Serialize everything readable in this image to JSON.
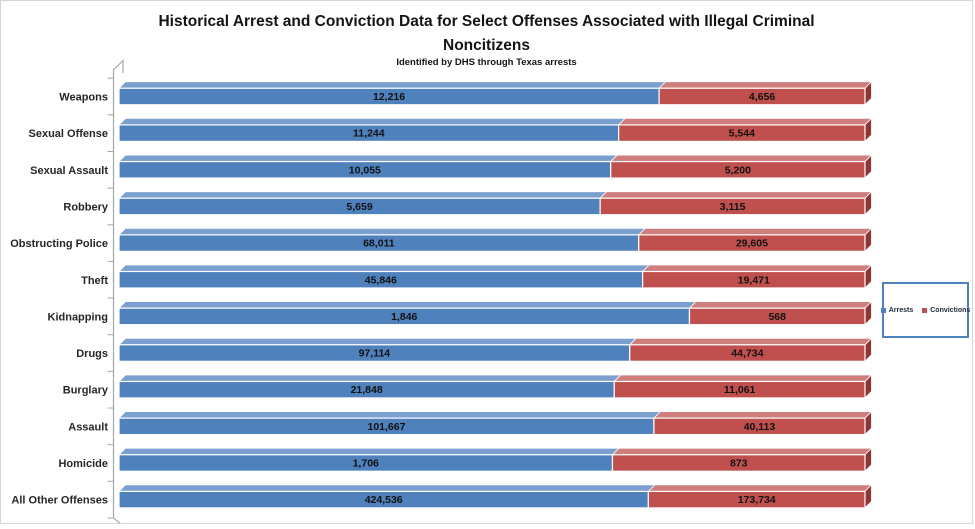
{
  "figure": {
    "title_line1": "Historical Arrest and Conviction Data for Select Offenses Associated with Illegal Criminal",
    "title_line2": "Noncitizens",
    "subtitle": "Identified by DHS through Texas arrests"
  },
  "chart_data": {
    "type": "bar",
    "orientation": "horizontal",
    "stacking": "100-percent-stacked",
    "style": "3d-oblique",
    "title": "Historical Arrest and Conviction Data for Select Offenses Associated with Illegal Criminal Noncitizens",
    "subtitle": "Identified by DHS through Texas arrests",
    "categories": [
      "Weapons",
      "Sexual Offense",
      "Sexual Assault",
      "Robbery",
      "Obstructing Police",
      "Theft",
      "Kidnapping",
      "Drugs",
      "Burglary",
      "Assault",
      "Homicide",
      "All Other Offenses"
    ],
    "series": [
      {
        "name": "Arrests",
        "color": "#4F81BD",
        "top_color": "#7BA0D0",
        "cap_color": "#2F567F",
        "values": [
          12216,
          11244,
          10055,
          5659,
          68011,
          45846,
          1846,
          97114,
          21848,
          101667,
          1706,
          424536
        ],
        "labels": [
          "12,216",
          "11,244",
          "10,055",
          "5,659",
          "68,011",
          "45,846",
          "1,846",
          "97,114",
          "21,848",
          "101,667",
          "1,706",
          "424,536"
        ]
      },
      {
        "name": "Convictions",
        "color": "#C0504D",
        "top_color": "#CE7E7C",
        "cap_color": "#8E3634",
        "values": [
          4656,
          5544,
          5200,
          3115,
          29605,
          19471,
          568,
          44734,
          11061,
          40113,
          873,
          173734
        ],
        "labels": [
          "4,656",
          "5,544",
          "5,200",
          "3,115",
          "29,605",
          "19,471",
          "568",
          "44,734",
          "11,061",
          "40,113",
          "873",
          "173,734"
        ]
      }
    ],
    "legend": {
      "position": "right",
      "entries": [
        "Arrests",
        "Convictions"
      ],
      "border_color": "#4F81BD"
    },
    "axes": {
      "x_axis_labels_visible": false,
      "x_range_percent": [
        0,
        100
      ],
      "grid": false,
      "axis_line_color": "#A8A8A8"
    },
    "value_label_color": "#111111",
    "category_label_color": "#262626"
  }
}
